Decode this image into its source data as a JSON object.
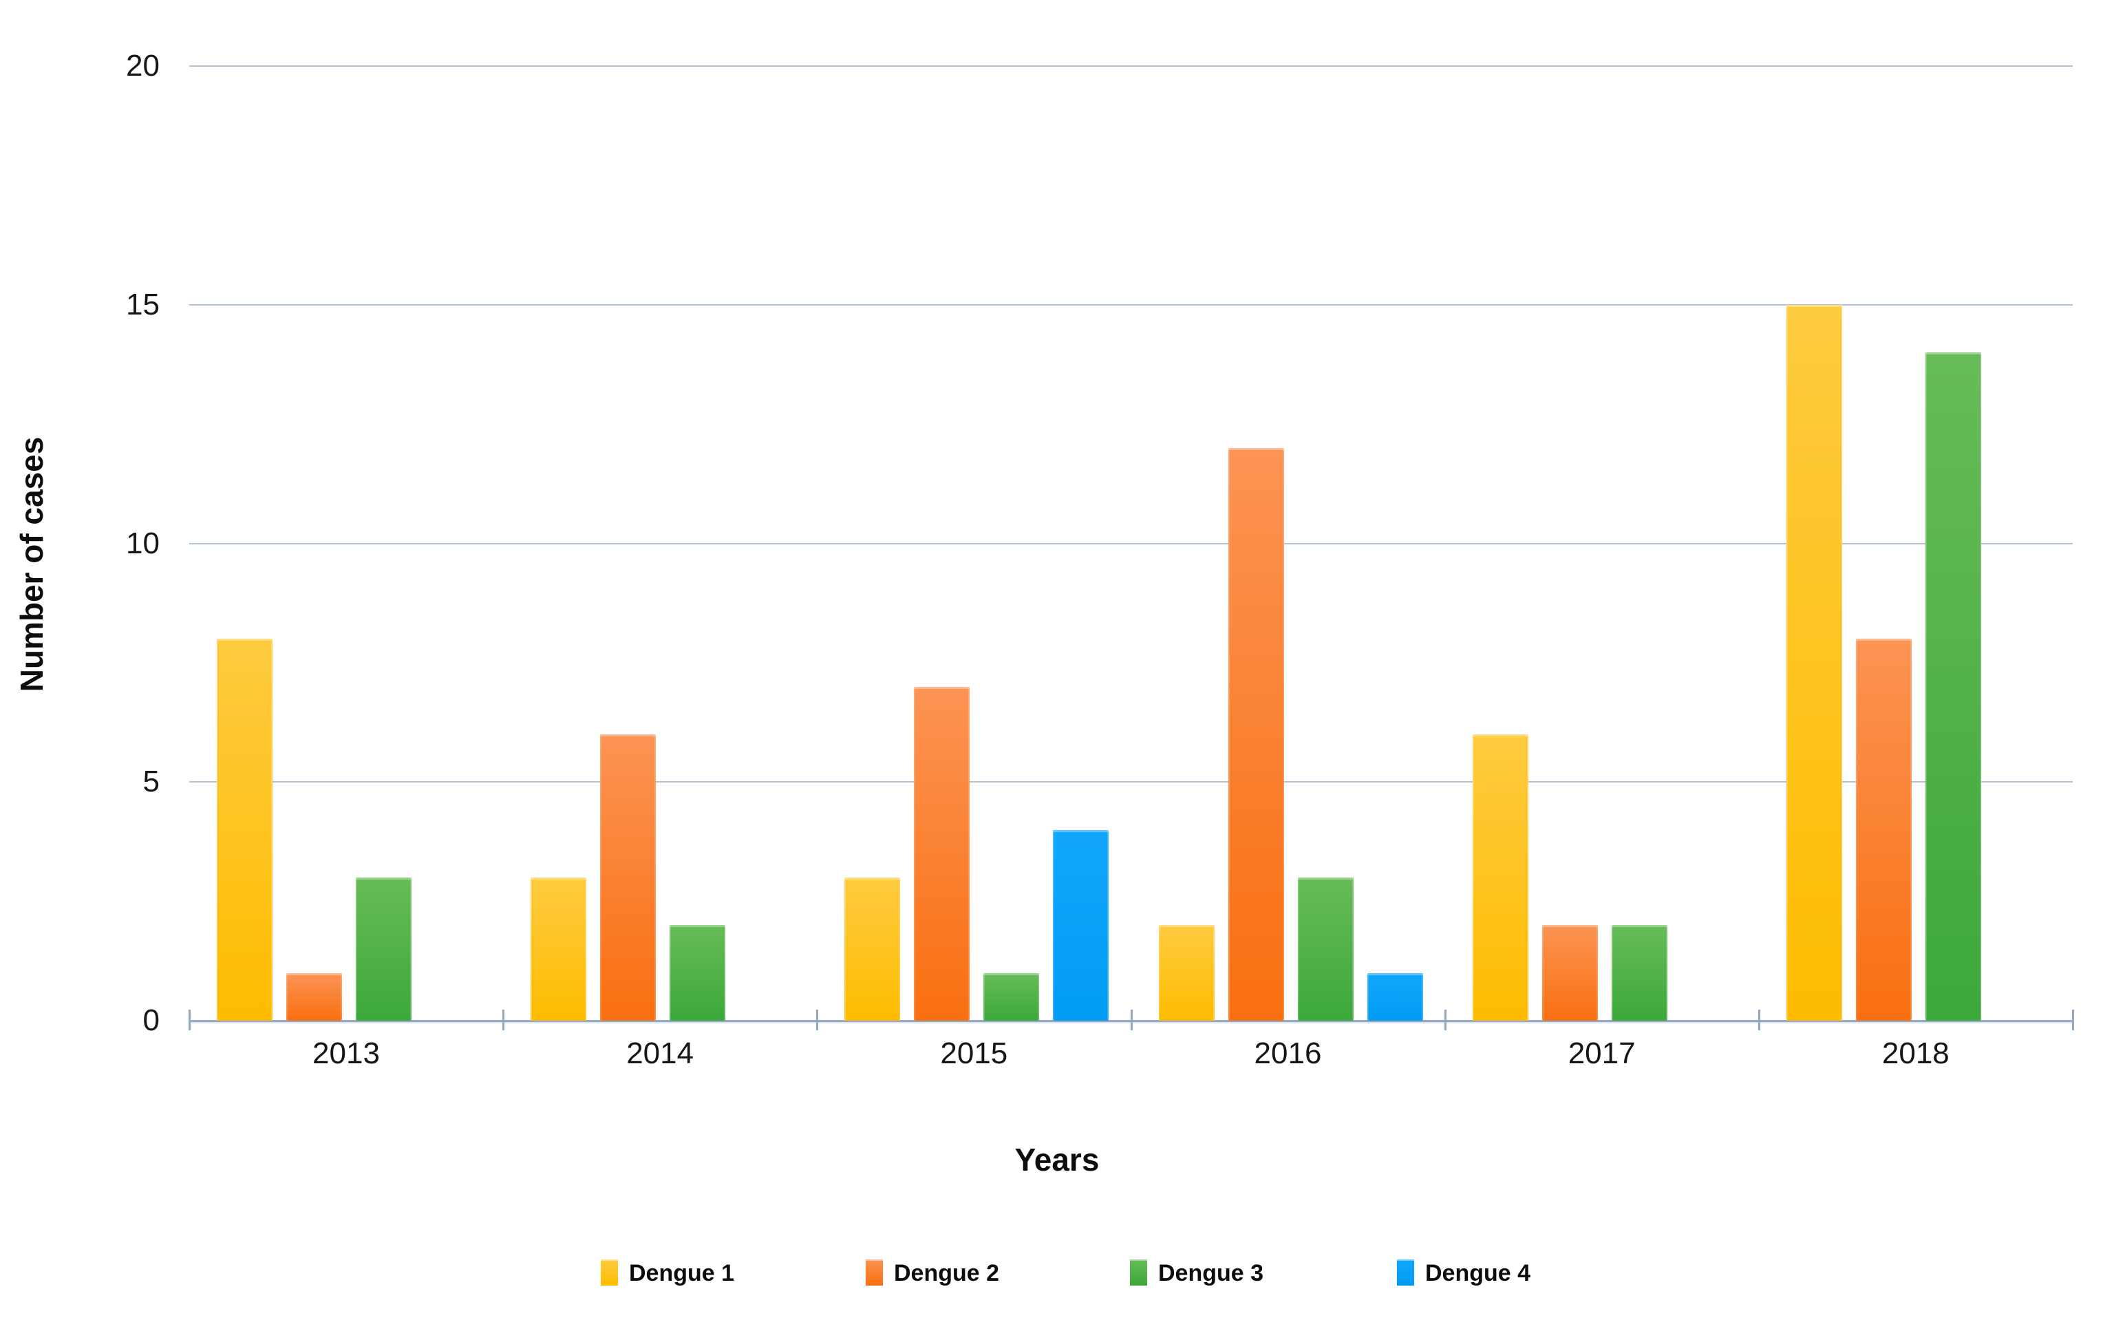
{
  "chart_data": {
    "type": "bar",
    "title": "",
    "categories": [
      "2013",
      "2014",
      "2015",
      "2016",
      "2017",
      "2018"
    ],
    "series": [
      {
        "name": "Dengue 1",
        "values": [
          8,
          3,
          3,
          2,
          6,
          15
        ],
        "color_top": "#FFCB40",
        "color_bottom": "#FDBC00"
      },
      {
        "name": "Dengue 2",
        "values": [
          1,
          6,
          7,
          12,
          2,
          8
        ],
        "color_top": "#FC9454",
        "color_bottom": "#F96F10"
      },
      {
        "name": "Dengue 3",
        "values": [
          3,
          2,
          1,
          3,
          2,
          14
        ],
        "color_top": "#67BC58",
        "color_bottom": "#3CA83A"
      },
      {
        "name": "Dengue 4",
        "values": [
          0,
          0,
          4,
          1,
          0,
          0
        ],
        "color_top": "#12A7FC",
        "color_bottom": "#009CF2"
      }
    ],
    "xlabel": "Years",
    "ylabel": "Number of cases",
    "ylim": [
      0,
      20
    ],
    "yticks": [
      0,
      5,
      10,
      15,
      20
    ],
    "grid": "horizontal",
    "legend_position": "bottom"
  },
  "colors": {
    "gridline": "#AFC2D8",
    "axis": "#94A9C4",
    "text": "#161616"
  }
}
